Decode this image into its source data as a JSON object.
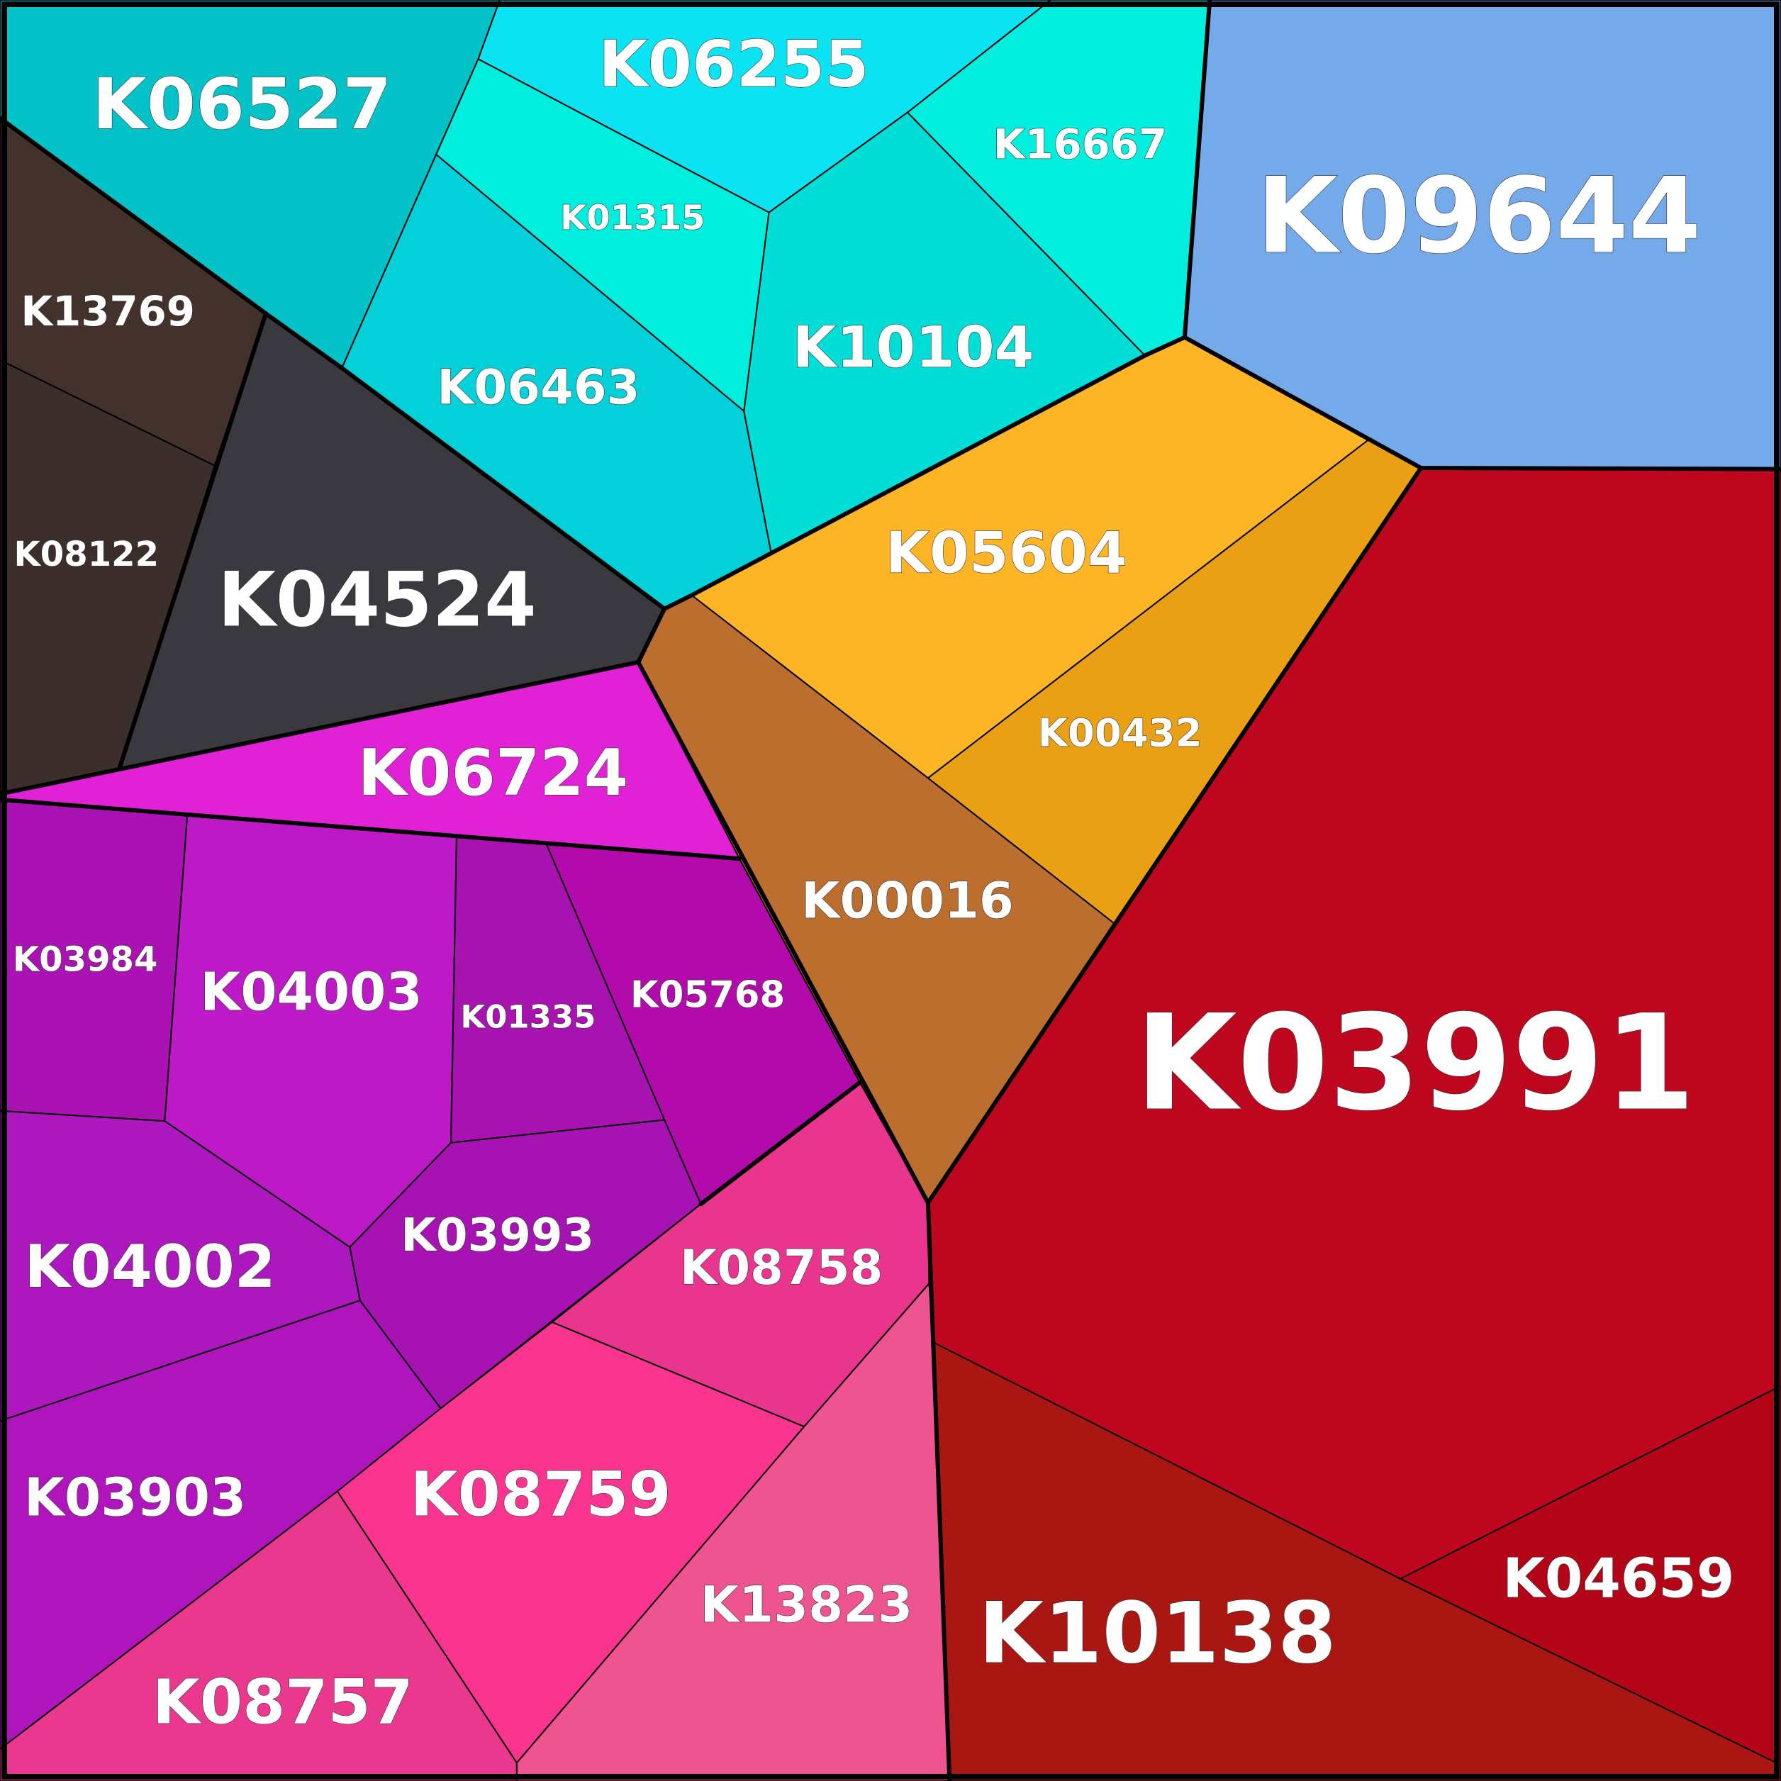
{
  "chart_data": {
    "type": "voronoi-treemap",
    "cells": [
      {
        "id": "K06527",
        "label": "K06527",
        "color": "#03C2C8",
        "group": "cyan"
      },
      {
        "id": "K06255",
        "label": "K06255",
        "color": "#0BE3F2",
        "group": "cyan"
      },
      {
        "id": "K16667",
        "label": "K16667",
        "color": "#02EEDF",
        "group": "cyan"
      },
      {
        "id": "K01315",
        "label": "K01315",
        "color": "#00EEDE",
        "group": "cyan"
      },
      {
        "id": "K06463",
        "label": "K06463",
        "color": "#03D0D8",
        "group": "cyan"
      },
      {
        "id": "K10104",
        "label": "K10104",
        "color": "#01DED8",
        "group": "cyan"
      },
      {
        "id": "K09644",
        "label": "K09644",
        "color": "#74AAEA",
        "group": "blue"
      },
      {
        "id": "K13769",
        "label": "K13769",
        "color": "#43312C",
        "group": "dark"
      },
      {
        "id": "K08122",
        "label": "K08122",
        "color": "#3C2E2B",
        "group": "dark"
      },
      {
        "id": "K04524",
        "label": "K04524",
        "color": "#3B3940",
        "group": "dark"
      },
      {
        "id": "K05604",
        "label": "K05604",
        "color": "#FDB526",
        "group": "orange"
      },
      {
        "id": "K00432",
        "label": "K00432",
        "color": "#EAA014",
        "group": "orange"
      },
      {
        "id": "K00016",
        "label": "K00016",
        "color": "#BB6E2E",
        "group": "brown"
      },
      {
        "id": "K06724",
        "label": "K06724",
        "color": "#E021D6",
        "group": "magenta"
      },
      {
        "id": "K03984",
        "label": "K03984",
        "color": "#AB12B4",
        "group": "purple"
      },
      {
        "id": "K04003",
        "label": "K04003",
        "color": "#BE19C6",
        "group": "purple"
      },
      {
        "id": "K01335",
        "label": "K01335",
        "color": "#A712B1",
        "group": "purple"
      },
      {
        "id": "K05768",
        "label": "K05768",
        "color": "#B30AAC",
        "group": "purple"
      },
      {
        "id": "K04002",
        "label": "K04002",
        "color": "#AC18BE",
        "group": "purple"
      },
      {
        "id": "K03993",
        "label": "K03993",
        "color": "#A713B3",
        "group": "purple"
      },
      {
        "id": "K03903",
        "label": "K03903",
        "color": "#B015BD",
        "group": "purple"
      },
      {
        "id": "K08758",
        "label": "K08758",
        "color": "#E9358E",
        "group": "pink"
      },
      {
        "id": "K08759",
        "label": "K08759",
        "color": "#FB358F",
        "group": "pink"
      },
      {
        "id": "K08757",
        "label": "K08757",
        "color": "#EB388F",
        "group": "pink"
      },
      {
        "id": "K13823",
        "label": "K13823",
        "color": "#EE548F",
        "group": "pink"
      },
      {
        "id": "K03991",
        "label": "K03991",
        "color": "#BE071E",
        "group": "red"
      },
      {
        "id": "K10138",
        "label": "K10138",
        "color": "#AA1611",
        "group": "red"
      },
      {
        "id": "K04659",
        "label": "K04659",
        "color": "#B30418",
        "group": "red"
      }
    ]
  }
}
